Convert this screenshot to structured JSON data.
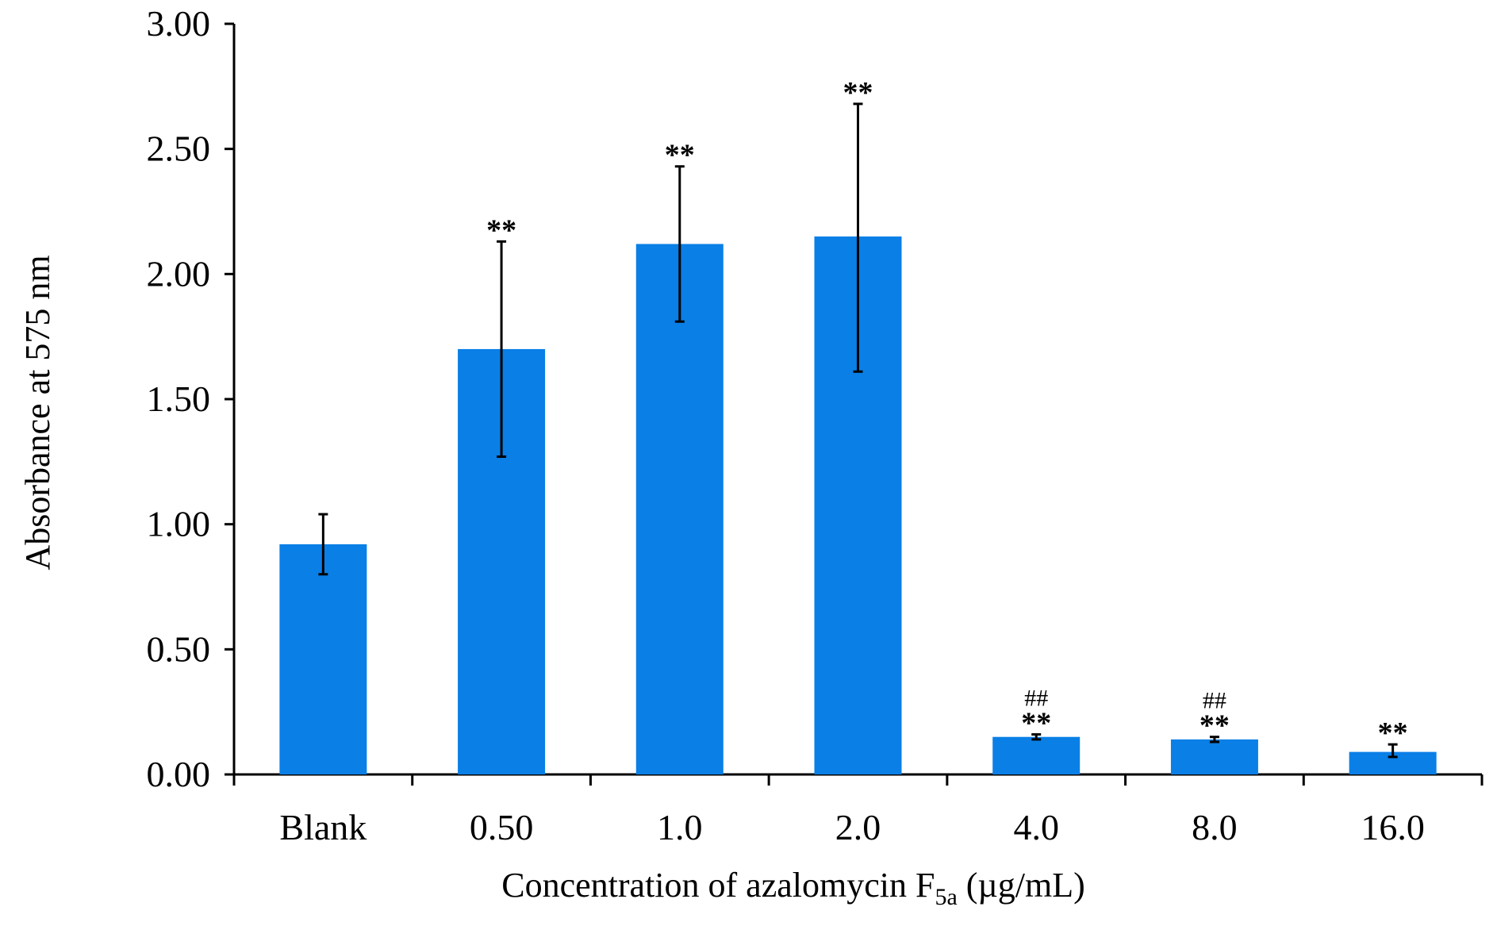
{
  "chart_data": {
    "type": "bar",
    "title": "",
    "xlabel": {
      "prefix": "Concentration of azalomycin F",
      "subscript": "5a",
      "suffix": " (µg/mL)"
    },
    "ylabel": "Absorbance at 575 nm",
    "categories": [
      "Blank",
      "0.50",
      "1.0",
      "2.0",
      "4.0",
      "8.0",
      "16.0"
    ],
    "values": [
      0.92,
      1.7,
      2.12,
      2.15,
      0.15,
      0.14,
      0.09
    ],
    "error_low": [
      0.8,
      1.27,
      1.81,
      1.61,
      0.14,
      0.13,
      0.07
    ],
    "error_high": [
      1.04,
      2.13,
      2.43,
      2.68,
      0.16,
      0.15,
      0.12
    ],
    "significance": [
      "",
      "**",
      "**",
      "**",
      "**",
      "**",
      "**"
    ],
    "hash_marks": [
      "",
      "",
      "",
      "",
      "##",
      "##",
      ""
    ],
    "ylim": [
      0,
      3.0
    ],
    "yticks": [
      "0.00",
      "0.50",
      "1.00",
      "1.50",
      "2.00",
      "2.50",
      "3.00"
    ],
    "ytick_values": [
      0,
      0.5,
      1.0,
      1.5,
      2.0,
      2.5,
      3.0
    ],
    "bar_color": "#0a7fe6",
    "grid": false,
    "legend": "none"
  }
}
